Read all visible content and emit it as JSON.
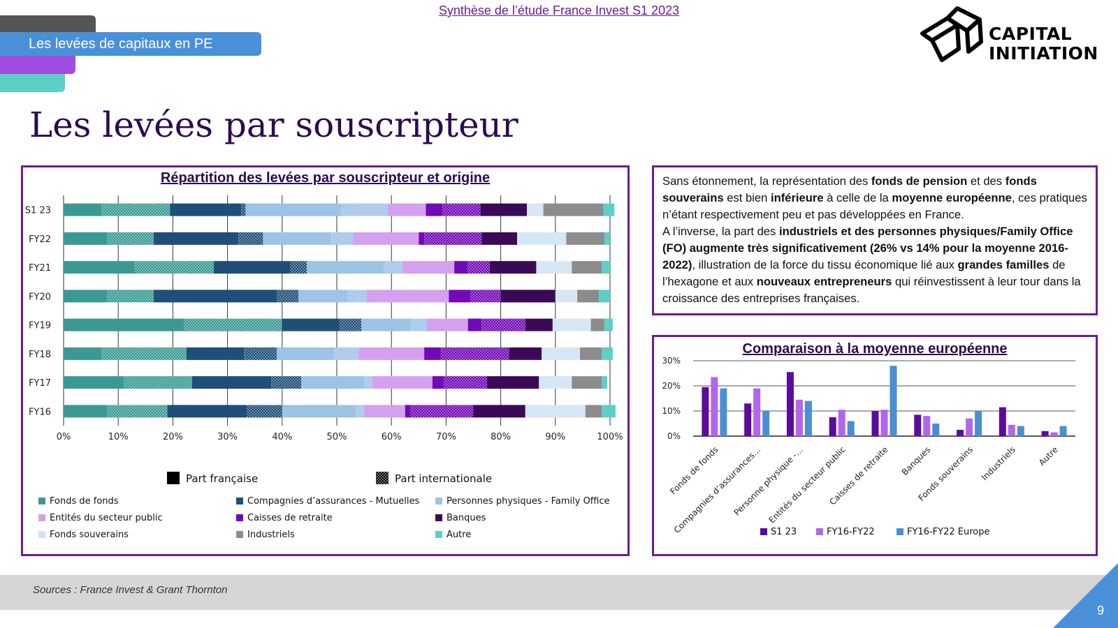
{
  "header": {
    "title": "Synthèse de l’étude France Invest S1 2023",
    "section": "Les levées de capitaux en PE"
  },
  "logo": {
    "line1": "CAPITAL",
    "line2": "INITIATION"
  },
  "page": {
    "title": "Les levées par souscripteur",
    "number": "9"
  },
  "footer": {
    "source": "Sources : France Invest & Grant Thornton"
  },
  "text_panel": {
    "p1": [
      {
        "t": "Sans étonnement, la représentation des ",
        "b": false
      },
      {
        "t": "fonds de pension",
        "b": true
      },
      {
        "t": " et des ",
        "b": false
      },
      {
        "t": "fonds souverains",
        "b": true
      },
      {
        "t": " est bien ",
        "b": false
      },
      {
        "t": "inférieure",
        "b": true
      },
      {
        "t": " à celle de la ",
        "b": false
      },
      {
        "t": "moyenne européenne",
        "b": true
      },
      {
        "t": ", ces pratiques n’étant respectivement peu et pas développées en France.",
        "b": false
      }
    ],
    "p2": [
      {
        "t": "A l’inverse, la part des ",
        "b": false
      },
      {
        "t": "industriels et des personnes physiques/Family Office (FO) augmente très significativement (26% vs 14% pour la moyenne 2016-2022)",
        "b": true
      },
      {
        "t": ", illustration de la force du tissu économique lié aux ",
        "b": false
      },
      {
        "t": "grandes familles",
        "b": true
      },
      {
        "t": " de l’hexagone et aux ",
        "b": false
      },
      {
        "t": "nouveaux entrepreneurs",
        "b": true
      },
      {
        "t": " qui réinvestissent à leur tour dans la croissance des entreprises françaises.",
        "b": false
      }
    ]
  },
  "chart_data": [
    {
      "type": "bar",
      "orientation": "horizontal-stacked-100",
      "title": "Répartition des levées par souscripteur et origine",
      "categories": [
        "S1 23",
        "FY22",
        "FY21",
        "FY20",
        "FY19",
        "FY18",
        "FY17",
        "FY16"
      ],
      "x_ticks": [
        "0%",
        "10%",
        "20%",
        "30%",
        "40%",
        "50%",
        "60%",
        "70%",
        "80%",
        "90%",
        "100%"
      ],
      "xlim": [
        0,
        100
      ],
      "grid": true,
      "origin_legend": [
        {
          "name": "Part française",
          "pattern": "solid"
        },
        {
          "name": "Part internationale",
          "pattern": "dotted"
        }
      ],
      "series": [
        {
          "name": "Fonds de fonds",
          "color": "#3a9a93",
          "fr": [
            7,
            8,
            13,
            8,
            22,
            7,
            11,
            8
          ],
          "intl": [
            12.5,
            8.5,
            14.5,
            8.5,
            18,
            15.5,
            12.5,
            11
          ]
        },
        {
          "name": "Compagnies d’assurances - Mutuelles",
          "color": "#1f4e79",
          "fr": [
            13,
            15.5,
            14,
            22.5,
            10.5,
            10.5,
            14.5,
            14.5
          ],
          "intl": [
            0.8,
            4.5,
            3,
            4,
            4,
            6,
            5.5,
            6.5
          ]
        },
        {
          "name": "Personnes physiques - Family Office",
          "color": "#9dc3e6",
          "fr": [
            17.5,
            12.5,
            14,
            9,
            9,
            10.5,
            11.5,
            13.5
          ],
          "intl": [
            8.5,
            4,
            3.5,
            3.5,
            3,
            4.5,
            1.5,
            1.5
          ]
        },
        {
          "name": "Entités du secteur public",
          "color": "#d4a1f0",
          "fr": [
            7,
            12,
            9.5,
            15,
            7.5,
            12,
            11,
            7.5
          ],
          "intl": [
            0,
            0,
            0,
            0,
            0,
            0,
            0,
            0
          ]
        },
        {
          "name": "Caisses de retraite",
          "color": "#7209b7",
          "fr": [
            3,
            1,
            2.5,
            4,
            2.5,
            3,
            2,
            1
          ],
          "intl": [
            7,
            10.5,
            4,
            5.5,
            8,
            12.5,
            8,
            11.5
          ]
        },
        {
          "name": "Banques",
          "color": "#3b0a57",
          "fr": [
            8.5,
            6.5,
            8.5,
            10,
            5,
            6,
            9.5,
            9.5
          ],
          "intl": [
            0,
            0,
            0,
            0,
            0,
            0,
            0,
            0
          ]
        },
        {
          "name": "Fonds souverains",
          "color": "#cfe2f3",
          "fr": [
            0,
            0,
            0,
            0,
            0,
            0,
            0,
            0
          ],
          "intl": [
            3,
            9,
            6.5,
            4,
            7,
            7,
            6,
            11
          ]
        },
        {
          "name": "Industriels",
          "color": "#8c8c8c",
          "fr": [
            11,
            7,
            5.5,
            4,
            2.5,
            4,
            5.5,
            3
          ],
          "intl": [
            0,
            0,
            0,
            0,
            0,
            0,
            0,
            0
          ]
        },
        {
          "name": "Autre",
          "color": "#5ccfc6",
          "fr": [
            2,
            1,
            1.5,
            2,
            1.5,
            2,
            1,
            2.5
          ],
          "intl": [
            0,
            0,
            0,
            0,
            0,
            0,
            0,
            0
          ]
        }
      ]
    },
    {
      "type": "bar",
      "title": "Comparaison à la moyenne européenne",
      "categories": [
        "Fonds de fonds",
        "Compagnies d’assurances…",
        "Personne physique -…",
        "Entités du secteur public",
        "Caisses de retraite",
        "Banques",
        "Fonds souverains",
        "Industriels",
        "Autre"
      ],
      "y_ticks": [
        "0%",
        "10%",
        "20%",
        "30%"
      ],
      "ylim": [
        0,
        30
      ],
      "grid": true,
      "legend_position": "bottom",
      "series": [
        {
          "name": "S1 23",
          "color": "#5b0b9e",
          "values": [
            19.5,
            13,
            25.5,
            7.5,
            10,
            8.5,
            2.5,
            11.5,
            2
          ]
        },
        {
          "name": "FY16-FY22",
          "color": "#b166ec",
          "values": [
            23.5,
            19,
            14.5,
            10.5,
            10.5,
            8,
            7,
            4.5,
            1.5
          ]
        },
        {
          "name": "FY16-FY22 Europe",
          "color": "#4a8fd6",
          "values": [
            19,
            10,
            14,
            6,
            28,
            5,
            10,
            4,
            4
          ]
        }
      ]
    }
  ]
}
